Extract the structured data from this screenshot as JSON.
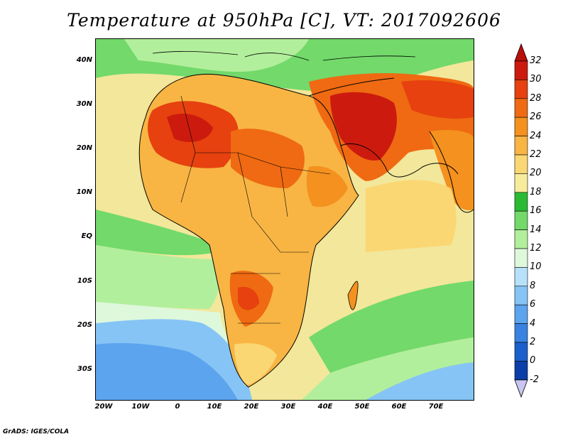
{
  "title": "Temperature at 950hPa [C], VT: 2017092606",
  "footer": "GrADS: IGES/COLA",
  "map": {
    "projection": "lat-lon",
    "lon_range": [
      -22,
      80
    ],
    "lat_range": [
      -36,
      45
    ],
    "lat_ticks": [
      "40N",
      "30N",
      "20N",
      "10N",
      "EQ",
      "10S",
      "20S",
      "30S"
    ],
    "lon_ticks": [
      "20W",
      "10W",
      "0",
      "10E",
      "20E",
      "30E",
      "40E",
      "50E",
      "60E",
      "70E"
    ],
    "background_sea": "#f2e79a"
  },
  "colorbar": {
    "labels": [
      "32",
      "30",
      "28",
      "26",
      "24",
      "22",
      "20",
      "18",
      "16",
      "14",
      "12",
      "10",
      "8",
      "6",
      "4",
      "2",
      "0",
      "-2"
    ],
    "colors": [
      "#cc1b0e",
      "#e6410f",
      "#ef6a12",
      "#f4911f",
      "#f8b544",
      "#fbd774",
      "#f7ec9c",
      "#2bba34",
      "#72d96a",
      "#b2ef9c",
      "#def8dc",
      "#b7e1fa",
      "#86c4f5",
      "#5ca4ee",
      "#3982e1",
      "#1b5fcd",
      "#0b3ea8",
      "#0a1f80"
    ],
    "top_arrow_color": "#b9100a",
    "bottom_arrow_color": "#c9c6f2"
  }
}
